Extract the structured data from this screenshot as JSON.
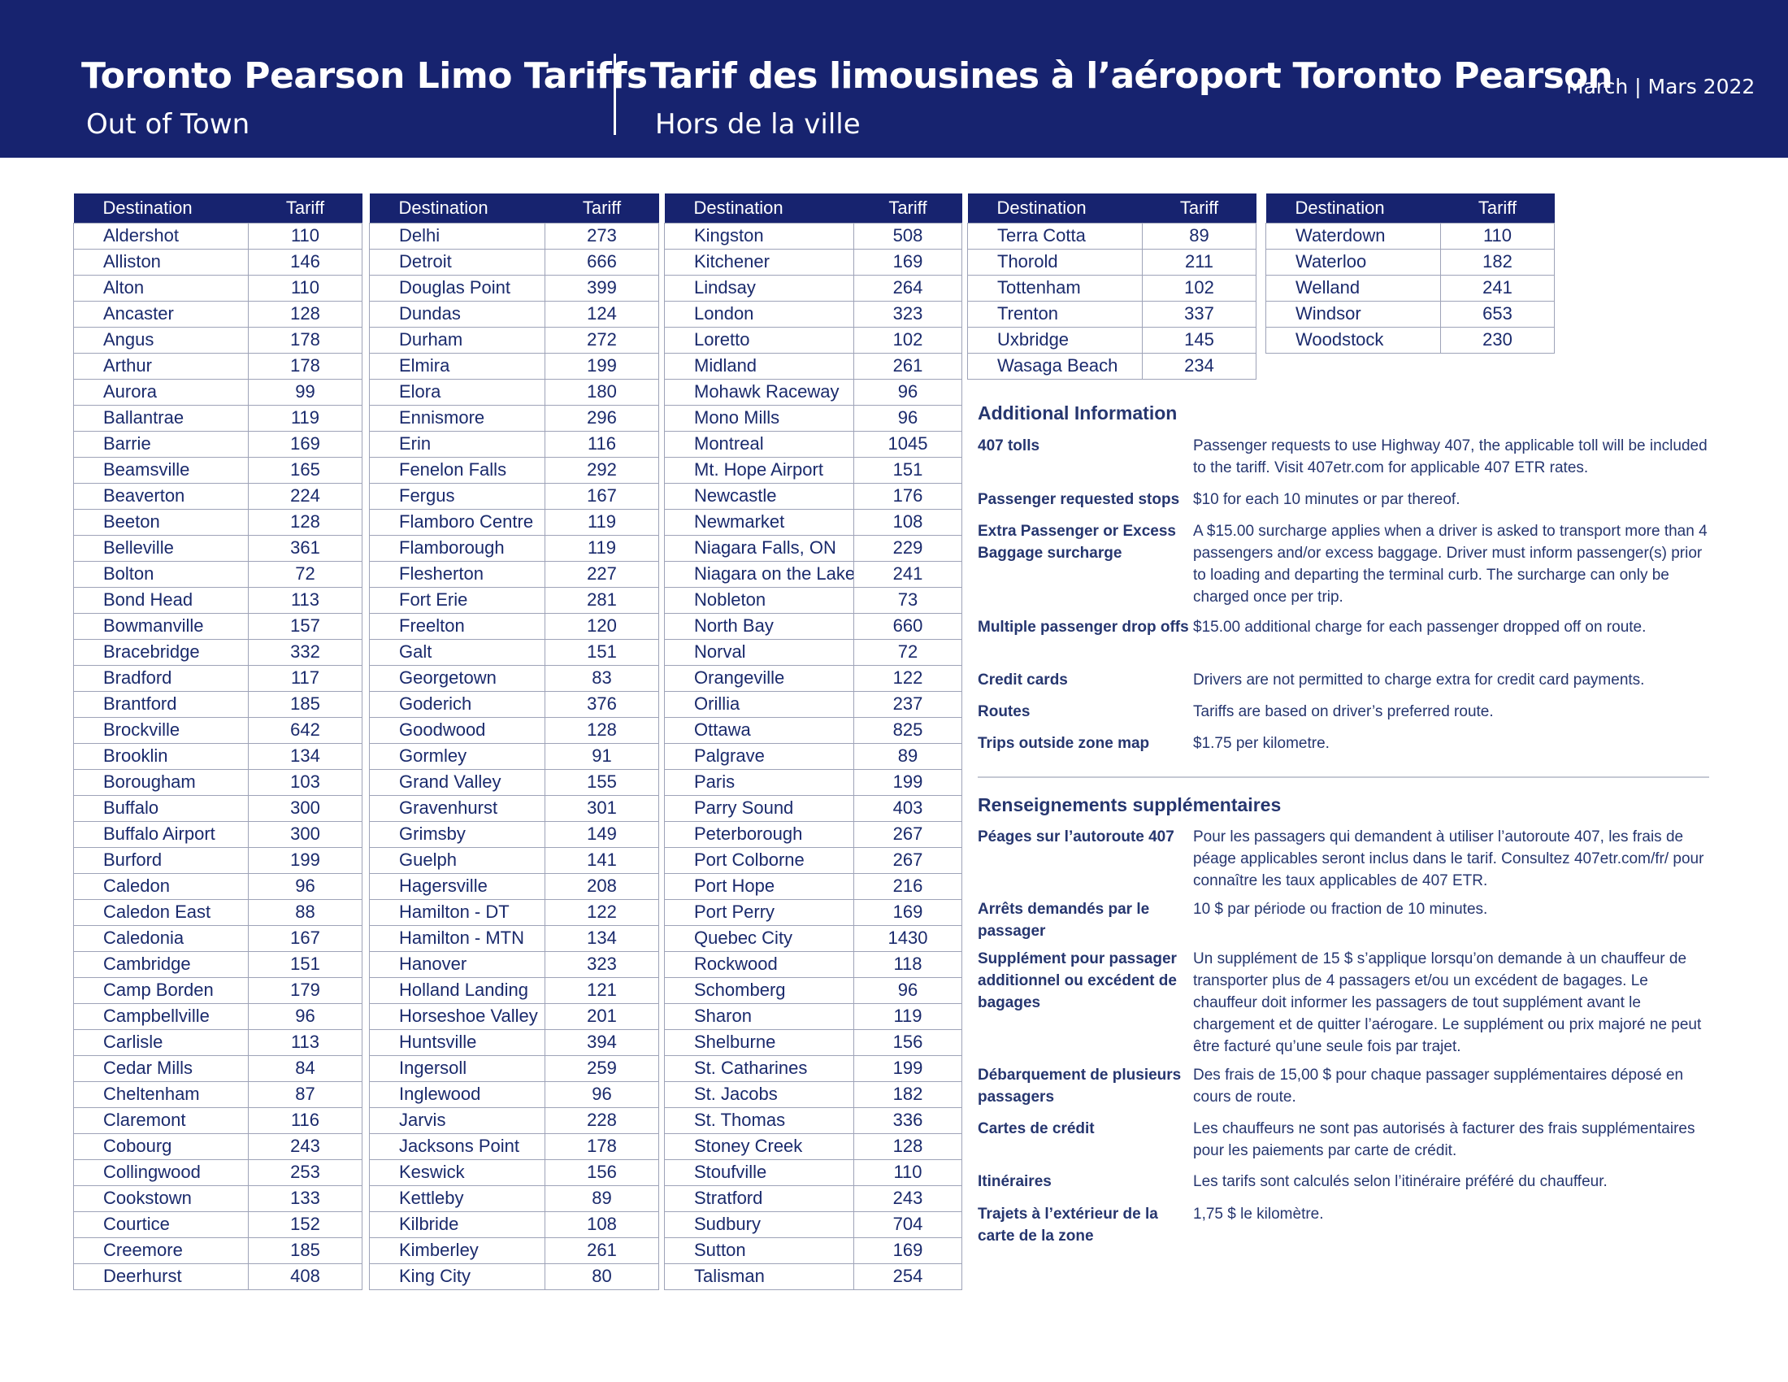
{
  "header": {
    "title_en": "Toronto Pearson Limo Tariffs",
    "subtitle_en": "Out of Town",
    "title_fr": "Tarif des limousines à l’aéroport Toronto Pearson",
    "subtitle_fr": "Hors de la ville",
    "date": "March | Mars 2022"
  },
  "table_headers": {
    "destination": "Destination",
    "tariff": "Tariff"
  },
  "tables": [
    [
      [
        "Aldershot",
        "110"
      ],
      [
        "Alliston",
        "146"
      ],
      [
        "Alton",
        "110"
      ],
      [
        "Ancaster",
        "128"
      ],
      [
        "Angus",
        "178"
      ],
      [
        "Arthur",
        "178"
      ],
      [
        "Aurora",
        "99"
      ],
      [
        "Ballantrae",
        "119"
      ],
      [
        "Barrie",
        "169"
      ],
      [
        "Beamsville",
        "165"
      ],
      [
        "Beaverton",
        "224"
      ],
      [
        "Beeton",
        "128"
      ],
      [
        "Belleville",
        "361"
      ],
      [
        "Bolton",
        "72"
      ],
      [
        "Bond Head",
        "113"
      ],
      [
        "Bowmanville",
        "157"
      ],
      [
        "Bracebridge",
        "332"
      ],
      [
        "Bradford",
        "117"
      ],
      [
        "Brantford",
        "185"
      ],
      [
        "Brockville",
        "642"
      ],
      [
        "Brooklin",
        "134"
      ],
      [
        "Borougham",
        "103"
      ],
      [
        "Buffalo",
        "300"
      ],
      [
        "Buffalo Airport",
        "300"
      ],
      [
        "Burford",
        "199"
      ],
      [
        "Caledon",
        "96"
      ],
      [
        "Caledon East",
        "88"
      ],
      [
        "Caledonia",
        "167"
      ],
      [
        "Cambridge",
        "151"
      ],
      [
        "Camp Borden",
        "179"
      ],
      [
        "Campbellville",
        "96"
      ],
      [
        "Carlisle",
        "113"
      ],
      [
        "Cedar Mills",
        "84"
      ],
      [
        "Cheltenham",
        "87"
      ],
      [
        "Claremont",
        "116"
      ],
      [
        "Cobourg",
        "243"
      ],
      [
        "Collingwood",
        "253"
      ],
      [
        "Cookstown",
        "133"
      ],
      [
        "Courtice",
        "152"
      ],
      [
        "Creemore",
        "185"
      ],
      [
        "Deerhurst",
        "408"
      ]
    ],
    [
      [
        "Delhi",
        "273"
      ],
      [
        "Detroit",
        "666"
      ],
      [
        "Douglas Point",
        "399"
      ],
      [
        "Dundas",
        "124"
      ],
      [
        "Durham",
        "272"
      ],
      [
        "Elmira",
        "199"
      ],
      [
        "Elora",
        "180"
      ],
      [
        "Ennismore",
        "296"
      ],
      [
        "Erin",
        "116"
      ],
      [
        "Fenelon Falls",
        "292"
      ],
      [
        "Fergus",
        "167"
      ],
      [
        "Flamboro Centre",
        "119"
      ],
      [
        "Flamborough",
        "119"
      ],
      [
        "Flesherton",
        "227"
      ],
      [
        "Fort Erie",
        "281"
      ],
      [
        "Freelton",
        "120"
      ],
      [
        "Galt",
        "151"
      ],
      [
        "Georgetown",
        "83"
      ],
      [
        "Goderich",
        "376"
      ],
      [
        "Goodwood",
        "128"
      ],
      [
        "Gormley",
        "91"
      ],
      [
        "Grand Valley",
        "155"
      ],
      [
        "Gravenhurst",
        "301"
      ],
      [
        "Grimsby",
        "149"
      ],
      [
        "Guelph",
        "141"
      ],
      [
        "Hagersville",
        "208"
      ],
      [
        "Hamilton - DT",
        "122"
      ],
      [
        "Hamilton - MTN",
        "134"
      ],
      [
        "Hanover",
        "323"
      ],
      [
        "Holland Landing",
        "121"
      ],
      [
        "Horseshoe Valley",
        "201"
      ],
      [
        "Huntsville",
        "394"
      ],
      [
        "Ingersoll",
        "259"
      ],
      [
        "Inglewood",
        "96"
      ],
      [
        "Jarvis",
        "228"
      ],
      [
        "Jacksons Point",
        "178"
      ],
      [
        "Keswick",
        "156"
      ],
      [
        "Kettleby",
        "89"
      ],
      [
        "Kilbride",
        "108"
      ],
      [
        "Kimberley",
        "261"
      ],
      [
        "King City",
        "80"
      ]
    ],
    [
      [
        "Kingston",
        "508"
      ],
      [
        "Kitchener",
        "169"
      ],
      [
        "Lindsay",
        "264"
      ],
      [
        "London",
        "323"
      ],
      [
        "Loretto",
        "102"
      ],
      [
        "Midland",
        "261"
      ],
      [
        "Mohawk Raceway",
        "96"
      ],
      [
        "Mono Mills",
        "96"
      ],
      [
        "Montreal",
        "1045"
      ],
      [
        "Mt. Hope Airport",
        "151"
      ],
      [
        "Newcastle",
        "176"
      ],
      [
        "Newmarket",
        "108"
      ],
      [
        "Niagara Falls, ON",
        "229"
      ],
      [
        "Niagara on the Lake",
        "241"
      ],
      [
        "Nobleton",
        "73"
      ],
      [
        "North Bay",
        "660"
      ],
      [
        "Norval",
        "72"
      ],
      [
        "Orangeville",
        "122"
      ],
      [
        "Orillia",
        "237"
      ],
      [
        "Ottawa",
        "825"
      ],
      [
        "Palgrave",
        "89"
      ],
      [
        "Paris",
        "199"
      ],
      [
        "Parry Sound",
        "403"
      ],
      [
        "Peterborough",
        "267"
      ],
      [
        "Port Colborne",
        "267"
      ],
      [
        "Port Hope",
        "216"
      ],
      [
        "Port Perry",
        "169"
      ],
      [
        "Quebec City",
        "1430"
      ],
      [
        "Rockwood",
        "118"
      ],
      [
        "Schomberg",
        "96"
      ],
      [
        "Sharon",
        "119"
      ],
      [
        "Shelburne",
        "156"
      ],
      [
        "St. Catharines",
        "199"
      ],
      [
        "St. Jacobs",
        "182"
      ],
      [
        "St. Thomas",
        "336"
      ],
      [
        "Stoney Creek",
        "128"
      ],
      [
        "Stoufville",
        "110"
      ],
      [
        "Stratford",
        "243"
      ],
      [
        "Sudbury",
        "704"
      ],
      [
        "Sutton",
        "169"
      ],
      [
        "Talisman",
        "254"
      ]
    ],
    [
      [
        "Terra Cotta",
        "89"
      ],
      [
        "Thorold",
        "211"
      ],
      [
        "Tottenham",
        "102"
      ],
      [
        "Trenton",
        "337"
      ],
      [
        "Uxbridge",
        "145"
      ],
      [
        "Wasaga Beach",
        "234"
      ]
    ],
    [
      [
        "Waterdown",
        "110"
      ],
      [
        "Waterloo",
        "182"
      ],
      [
        "Welland",
        "241"
      ],
      [
        "Windsor",
        "653"
      ],
      [
        "Woodstock",
        "230"
      ]
    ]
  ],
  "info_en": {
    "heading": "Additional Information",
    "rows": [
      {
        "label": "407 tolls",
        "text": "Passenger requests to use Highway 407, the applicable toll will be included to the tariff. Visit 407etr.com for applicable 407 ETR rates."
      },
      {
        "label": "Passenger requested stops",
        "text": "$10 for each 10 minutes or par thereof."
      },
      {
        "label": "Extra Passenger or Excess Baggage surcharge",
        "text": "A $15.00 surcharge applies when a driver is asked to transport more than 4 passengers and/or excess baggage. Driver must inform passenger(s) prior to loading and departing the terminal curb. The surcharge can only be charged once per trip."
      },
      {
        "label": "Multiple passenger drop offs",
        "text": "$15.00 additional charge for each passenger dropped off on route."
      },
      {
        "label": "Credit cards",
        "text": "Drivers are not permitted to charge extra for credit card payments."
      },
      {
        "label": "Routes",
        "text": "Tariffs are based on driver’s preferred route."
      },
      {
        "label": "Trips outside zone map",
        "text": "$1.75 per kilometre."
      }
    ]
  },
  "info_fr": {
    "heading": "Renseignements supplémentaires",
    "rows": [
      {
        "label": "Péages sur l’autoroute 407",
        "text": "Pour les passagers qui demandent à utiliser l’autoroute 407, les frais de péage applicables seront inclus dans le tarif. Consultez 407etr.com/fr/ pour connaître les taux applicables de 407 ETR."
      },
      {
        "label": "Arrêts demandés par le passager",
        "text": "10 $ par période ou fraction de 10 minutes."
      },
      {
        "label": "Supplément pour passager additionnel ou excédent de bagages",
        "text": "Un supplément de 15 $ s’applique lorsqu’on demande à un chauffeur de transporter plus de 4 passagers et/ou un excédent de bagages. Le chauffeur doit informer les passagers de tout supplément avant le chargement et de quitter l’aérogare. Le supplément ou prix majoré ne peut être facturé qu’une seule fois par trajet."
      },
      {
        "label": "Débarquement de plusieurs passagers",
        "text": "Des frais de 15,00 $ pour chaque passager supplémentaires déposé en cours de route."
      },
      {
        "label": "Cartes de crédit",
        "text": "Les chauffeurs ne sont pas autorisés à facturer des frais supplémentaires pour les paiements par carte de crédit."
      },
      {
        "label": "Itinéraires",
        "text": "Les tarifs sont calculés selon l’itinéraire préféré du chauffeur."
      },
      {
        "label": "Trajets à l’extérieur de la carte de la zone",
        "text": "1,75 $ le kilomètre."
      }
    ]
  }
}
